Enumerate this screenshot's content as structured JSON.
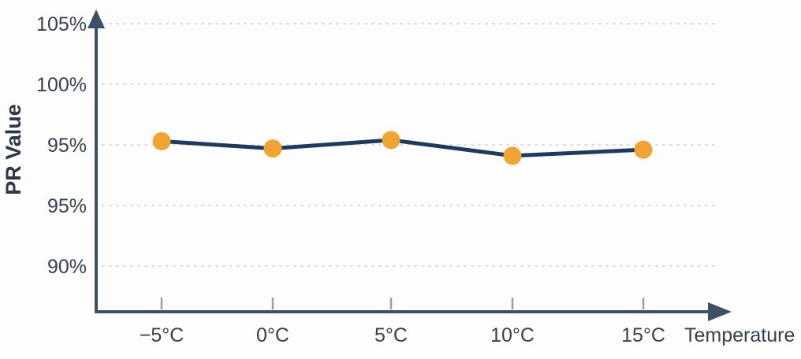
{
  "chart_data": {
    "type": "line",
    "title": "",
    "xlabel": "Temperature",
    "ylabel": "PR Value",
    "categories": [
      "−5°C",
      "0°C",
      "5°C",
      "10°C",
      "15°C"
    ],
    "series": [
      {
        "name": "PR Value",
        "values": [
          95.3,
          94.7,
          95.4,
          94.1,
          94.6
        ]
      }
    ],
    "y_tick_labels": [
      "105%",
      "100%",
      "95%",
      "95%",
      "90%"
    ],
    "y_tick_values": [
      105,
      100,
      95,
      95,
      90
    ],
    "ylim": [
      88,
      106
    ],
    "grid": "dotted-horizontal",
    "legend": "none",
    "colors": {
      "line": "#1e3a5f",
      "marker": "#f0a432",
      "axis": "#3d5166",
      "tick_text": "#38424f",
      "axis_label_text": "#2e3947",
      "gridline": "#dcdcdc",
      "tick_mark": "#97a0aa",
      "background": "#fdfdfd"
    }
  }
}
